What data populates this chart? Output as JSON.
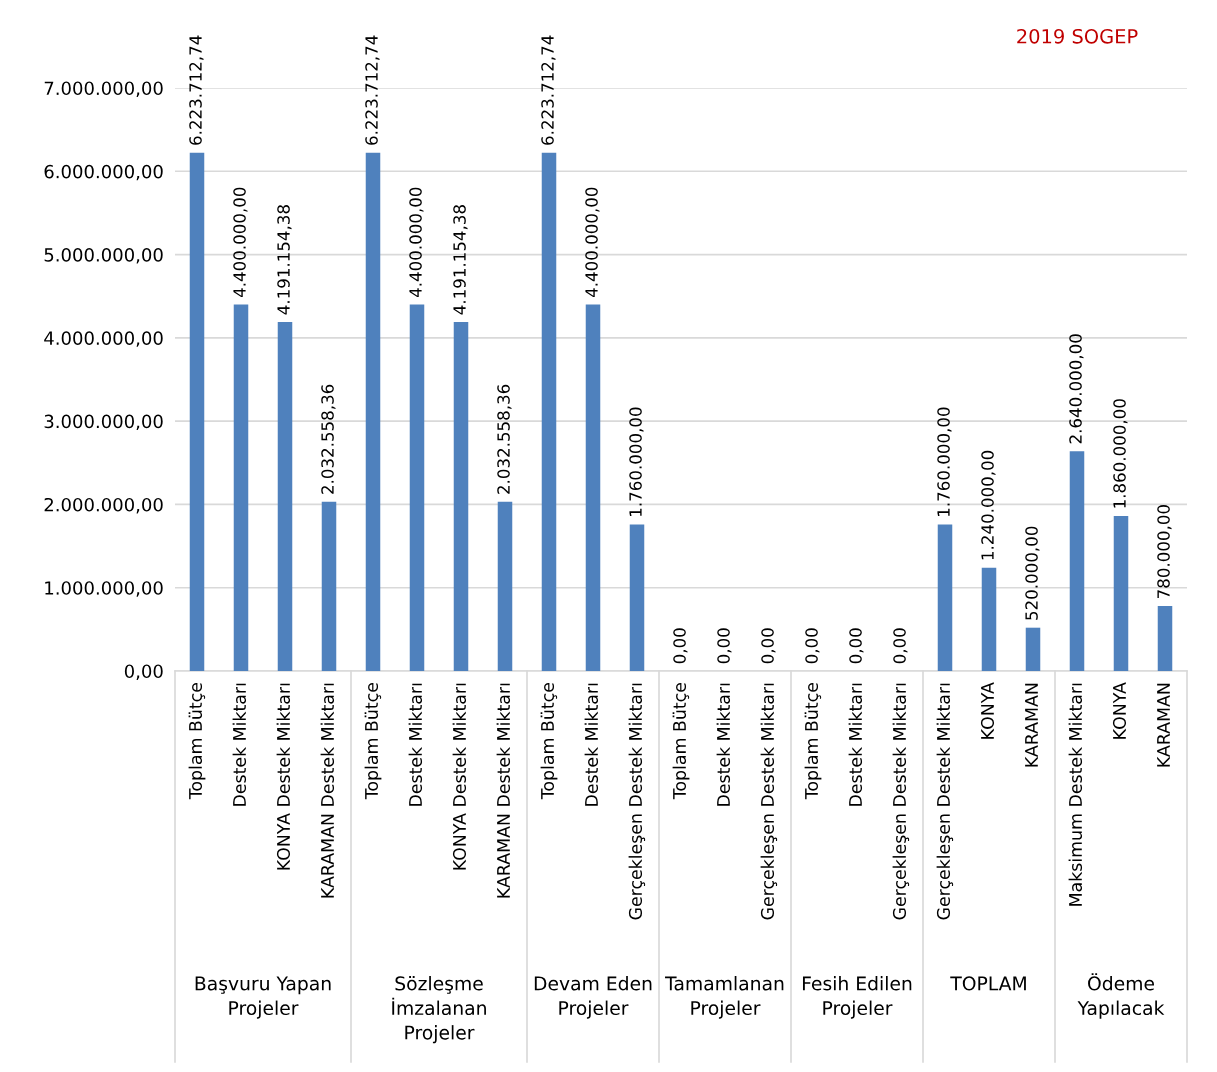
{
  "chart_data": {
    "type": "bar",
    "title": "2019 SOGEP",
    "categories": [
      "Toplam Bütçe",
      "Destek Miktarı",
      "KONYA Destek Miktarı",
      "KARAMAN Destek Miktarı",
      "Toplam Bütçe",
      "Destek Miktarı",
      "KONYA Destek Miktarı",
      "KARAMAN Destek Miktarı",
      "Toplam Bütçe",
      "Destek Miktarı",
      "Gerçekleşen Destek Miktarı",
      "Toplam Bütçe",
      "Destek Miktarı",
      "Gerçekleşen Destek Miktarı",
      "Toplam Bütçe",
      "Destek Miktarı",
      "Gerçekleşen Destek Miktarı",
      "Gerçekleşen Destek Miktarı",
      "KONYA",
      "KARAMAN",
      "Maksimum Destek Miktarı",
      "KONYA",
      "KARAMAN"
    ],
    "values": [
      6223712.74,
      4400000,
      4191154.38,
      2032558.36,
      6223712.74,
      4400000,
      4191154.38,
      2032558.36,
      6223712.74,
      4400000,
      1760000,
      0,
      0,
      0,
      0,
      0,
      0,
      1760000,
      1240000,
      520000,
      2640000,
      1860000,
      780000
    ],
    "value_labels": [
      "6.223.712,74",
      "4.400.000,00",
      "4.191.154,38",
      "2.032.558,36",
      "6.223.712,74",
      "4.400.000,00",
      "4.191.154,38",
      "2.032.558,36",
      "6.223.712,74",
      "4.400.000,00",
      "1.760.000,00",
      "0,00",
      "0,00",
      "0,00",
      "0,00",
      "0,00",
      "0,00",
      "1.760.000,00",
      "1.240.000,00",
      "520.000,00",
      "2.640.000,00",
      "1.860.000,00",
      "780.000,00"
    ],
    "annotations": [
      "Başvuru Yapan\nProjeler",
      "Sözleşme\nİmzalanan\nProjeler",
      "Devam Eden\nProjeler",
      "Tamamlanan\nProjeler",
      "Fesih Edilen\nProjeler",
      "TOPLAM",
      "Ödeme\nYapılacak"
    ],
    "color": "#4f81bd",
    "ylim": [
      0,
      7000000
    ],
    "yticks": [
      {
        "value": 0,
        "label": "0,00"
      },
      {
        "value": 1000000,
        "label": "1.000.000,00"
      },
      {
        "value": 2000000,
        "label": "2.000.000,00"
      },
      {
        "value": 3000000,
        "label": "3.000.000,00"
      },
      {
        "value": 4000000,
        "label": "4.000.000,00"
      },
      {
        "value": 5000000,
        "label": "5.000.000,00"
      },
      {
        "value": 6000000,
        "label": "6.000.000,00"
      },
      {
        "value": 7000000,
        "label": "7.000.000,00"
      }
    ],
    "grid": "y"
  }
}
